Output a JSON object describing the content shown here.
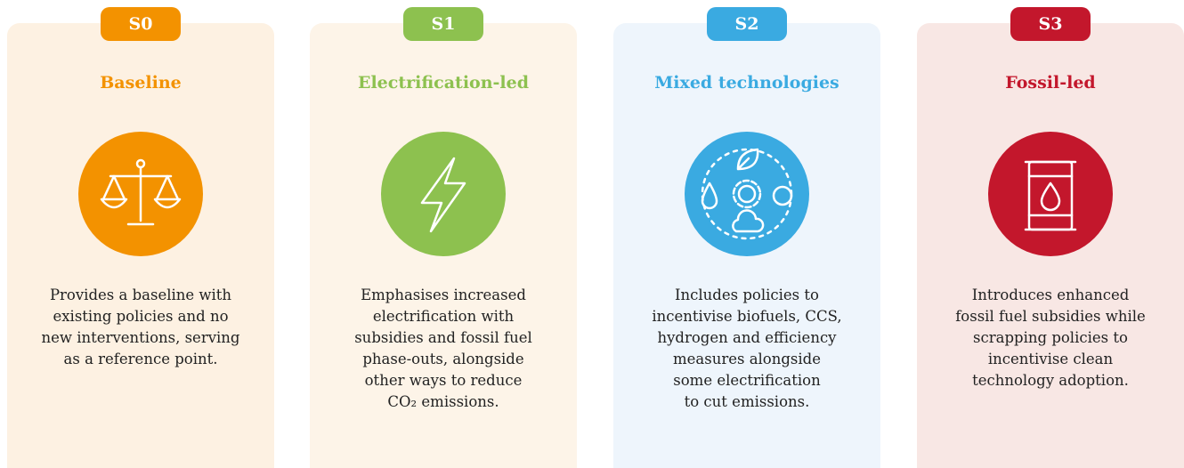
{
  "cards": [
    {
      "badge": "S0",
      "title": "Baseline",
      "description": [
        "Provides a baseline with",
        "existing policies and no",
        "new interventions, serving",
        "as a reference point."
      ]
    },
    {
      "badge": "S1",
      "title": "Electrification-led",
      "description": [
        "Emphasises increased",
        "electrification with",
        "subsidies and fossil fuel",
        "phase-outs, alongside",
        "other ways to reduce",
        "CO₂ emissions."
      ]
    },
    {
      "badge": "S2",
      "title": "Mixed technologies",
      "description": [
        "Includes policies to",
        "incentivise biofuels, CCS,",
        "hydrogen and efficiency",
        "measures alongside",
        "some electrification",
        "to cut emissions."
      ]
    },
    {
      "badge": "S3",
      "title": "Fossil-led",
      "description": [
        "Introduces enhanced",
        "fossil fuel subsidies while",
        "scrapping policies to",
        "incentivise clean",
        "technology adoption."
      ]
    }
  ]
}
